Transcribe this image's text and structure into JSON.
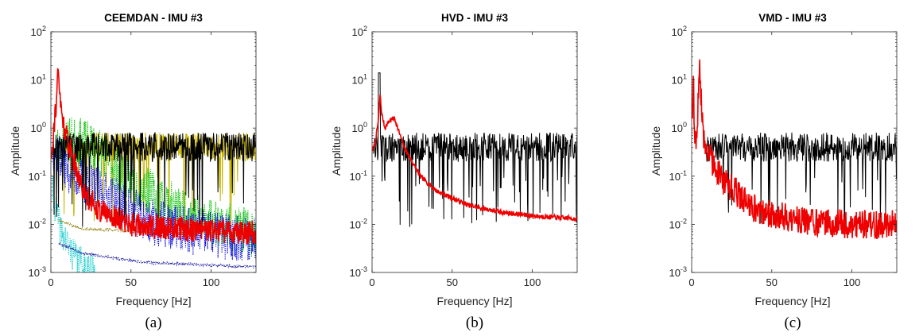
{
  "chart_data": [
    {
      "type": "line",
      "title": "CEEMDAN - IMU #3",
      "xlabel": "Frequency [Hz]",
      "ylabel": "Amplitude",
      "caption": "(a)",
      "yscale": "log",
      "xlim": [
        0,
        128
      ],
      "ylim": [
        0.001,
        100
      ],
      "xticks": [
        0,
        50,
        100
      ],
      "yticks": [
        "10",
        "10",
        "10",
        "10",
        "10",
        "10"
      ],
      "yexp": [
        "-3",
        "-2",
        "-1",
        "0",
        "1",
        "2"
      ],
      "series": [
        {
          "color": "#c8b400",
          "kind": "noise",
          "x_start": 8,
          "x_end": 128,
          "level": 0.4,
          "seed": 11
        },
        {
          "color": "#00c000",
          "kind": "points",
          "x": [
            2,
            10,
            20,
            30,
            40,
            60,
            80,
            100,
            128
          ],
          "y": [
            0.3,
            0.6,
            0.5,
            0.35,
            0.15,
            0.05,
            0.02,
            0.012,
            0.006
          ],
          "noise": 0.5,
          "seed": 23
        },
        {
          "color": "#0000dd",
          "kind": "points",
          "x": [
            1,
            5,
            10,
            20,
            30,
            40,
            60,
            80,
            100,
            128
          ],
          "y": [
            0.4,
            0.3,
            0.15,
            0.08,
            0.05,
            0.03,
            0.012,
            0.008,
            0.006,
            0.005
          ],
          "noise": 0.5,
          "seed": 37
        },
        {
          "color": "#00c8c8",
          "kind": "points",
          "x": [
            1,
            3,
            6,
            10,
            15,
            20,
            28
          ],
          "y": [
            0.05,
            0.02,
            0.008,
            0.004,
            0.002,
            0.0015,
            0.001
          ],
          "noise": 0.35,
          "seed": 41
        },
        {
          "color": "#1a1aa0",
          "kind": "points",
          "x": [
            5,
            20,
            60,
            128
          ],
          "y": [
            0.004,
            0.0025,
            0.0016,
            0.0013
          ],
          "noise": 0.03,
          "seed": 5
        },
        {
          "color": "#8c7a00",
          "kind": "points",
          "x": [
            5,
            20,
            60,
            128
          ],
          "y": [
            0.012,
            0.008,
            0.007,
            0.0065
          ],
          "noise": 0.03,
          "seed": 6
        },
        {
          "color": "#000000",
          "kind": "noise",
          "x_start": 1,
          "x_end": 128,
          "level": 0.4,
          "seed": 77
        },
        {
          "color": "#ee0000",
          "kind": "peak",
          "x": [
            0.5,
            2,
            3.5,
            4.5,
            5.2,
            6,
            8,
            10,
            13,
            16,
            20,
            30,
            50,
            80,
            128
          ],
          "y": [
            0.3,
            1.2,
            4,
            14,
            8,
            3,
            1.2,
            0.6,
            0.3,
            0.15,
            0.05,
            0.02,
            0.01,
            0.008,
            0.0065
          ],
          "noise": 0.25,
          "seed": 91
        }
      ]
    },
    {
      "type": "line",
      "title": "HVD - IMU #3",
      "xlabel": "Frequency [Hz]",
      "ylabel": "Amplitude",
      "caption": "(b)",
      "yscale": "log",
      "xlim": [
        0,
        128
      ],
      "ylim": [
        0.001,
        100
      ],
      "xticks": [
        0,
        50,
        100
      ],
      "yticks": [
        "10",
        "10",
        "10",
        "10",
        "10",
        "10"
      ],
      "yexp": [
        "-3",
        "-2",
        "-1",
        "0",
        "1",
        "2"
      ],
      "series": [
        {
          "color": "#000000",
          "kind": "noise",
          "x_start": 1,
          "x_end": 128,
          "level": 0.4,
          "seed": 131,
          "peak_at": 4.5,
          "peak_val": 14
        },
        {
          "color": "#ee0000",
          "kind": "points",
          "x": [
            0.5,
            2,
            4,
            5,
            6,
            8,
            10,
            12,
            14,
            16,
            20,
            25,
            30,
            40,
            50,
            60,
            80,
            100,
            128
          ],
          "y": [
            0.35,
            0.5,
            1.5,
            5,
            2,
            1.0,
            1.3,
            1.5,
            1.6,
            1.0,
            0.4,
            0.2,
            0.1,
            0.05,
            0.035,
            0.025,
            0.018,
            0.015,
            0.013
          ],
          "noise": 0.05,
          "seed": 7
        }
      ]
    },
    {
      "type": "line",
      "title": "VMD - IMU #3",
      "xlabel": "Frequency [Hz]",
      "ylabel": "Amplitude",
      "caption": "(c)",
      "yscale": "log",
      "xlim": [
        0,
        128
      ],
      "ylim": [
        0.001,
        100
      ],
      "xticks": [
        0,
        50,
        100
      ],
      "yticks": [
        "10",
        "10",
        "10",
        "10",
        "10",
        "10"
      ],
      "yexp": [
        "-3",
        "-2",
        "-1",
        "0",
        "1",
        "2"
      ],
      "series": [
        {
          "color": "#000000",
          "kind": "noise",
          "x_start": 9,
          "x_end": 128,
          "level": 0.4,
          "seed": 211
        },
        {
          "color": "#ee0000",
          "kind": "peak",
          "x": [
            0.5,
            1,
            2,
            3,
            4,
            5,
            6,
            7,
            8,
            10,
            15,
            20,
            30,
            40,
            60,
            80,
            100,
            128
          ],
          "y": [
            2,
            12,
            0.5,
            0.4,
            3,
            14,
            4,
            1,
            0.5,
            0.3,
            0.15,
            0.08,
            0.04,
            0.02,
            0.014,
            0.011,
            0.01,
            0.01
          ],
          "noise": 0.3,
          "seed": 223
        }
      ]
    }
  ]
}
